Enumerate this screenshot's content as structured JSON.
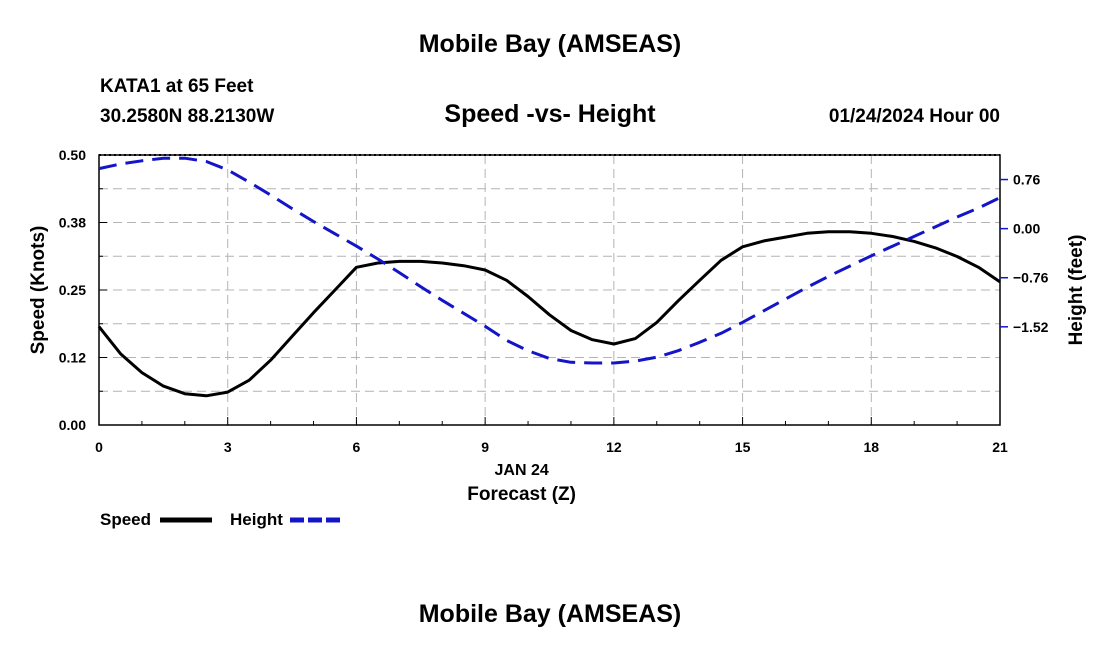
{
  "header": {
    "title": "Mobile Bay (AMSEAS)",
    "station": "KATA1 at 65 Feet",
    "coords": "30.2580N  88.2130W",
    "subtitle": "Speed -vs- Height",
    "datetime": "01/24/2024 Hour 00"
  },
  "footer": {
    "title": "Mobile Bay (AMSEAS)"
  },
  "colors": {
    "speed": "#000000",
    "height": "#1414c8",
    "grid": "#b4b4b4"
  },
  "chart_data": {
    "type": "line",
    "xlabel": "Forecast (Z)",
    "xdate_label": "JAN 24",
    "ylabel": "Speed (Knots)",
    "y2label": "Height (feet)",
    "xlim": [
      0,
      21
    ],
    "ylim": [
      0,
      0.5
    ],
    "y2lim": [
      -3.04,
      1.14
    ],
    "xticks": [
      0,
      3,
      6,
      9,
      12,
      15,
      18,
      21
    ],
    "xtick_labels": [
      "0",
      "3",
      "6",
      "9",
      "12",
      "15",
      "18",
      "21"
    ],
    "yticks": [
      0,
      0.125,
      0.25,
      0.375,
      0.5
    ],
    "ytick_labels": [
      "0.00",
      "0.12",
      "0.25",
      "0.38",
      "0.50"
    ],
    "y2ticks": [
      -1.52,
      -0.76,
      0,
      0.76
    ],
    "y2tick_labels": [
      "-1.52",
      "-0.76",
      "0.00",
      "0.76"
    ],
    "grid": true,
    "legend": {
      "placement": "bottom-left",
      "entries": [
        "Speed",
        "Height"
      ]
    },
    "series": [
      {
        "name": "Speed",
        "axis": "left",
        "style": "solid",
        "x": [
          0,
          0.5,
          1,
          1.5,
          2,
          2.5,
          3,
          3.5,
          4,
          4.5,
          5,
          5.5,
          6,
          6.5,
          7,
          7.5,
          8,
          8.5,
          9,
          9.5,
          10,
          10.5,
          11,
          11.5,
          12,
          12.5,
          13,
          13.5,
          14,
          14.5,
          15,
          15.5,
          16,
          16.5,
          17,
          17.5,
          18,
          18.5,
          19,
          19.5,
          20,
          20.5,
          21
        ],
        "values": [
          0.182,
          0.132,
          0.097,
          0.072,
          0.058,
          0.054,
          0.061,
          0.083,
          0.12,
          0.164,
          0.208,
          0.25,
          0.292,
          0.3,
          0.303,
          0.303,
          0.3,
          0.295,
          0.287,
          0.268,
          0.238,
          0.204,
          0.175,
          0.158,
          0.15,
          0.16,
          0.19,
          0.23,
          0.268,
          0.305,
          0.33,
          0.341,
          0.348,
          0.355,
          0.358,
          0.358,
          0.355,
          0.349,
          0.34,
          0.328,
          0.312,
          0.292,
          0.265
        ]
      },
      {
        "name": "Height",
        "axis": "right",
        "style": "dashed",
        "x": [
          0,
          0.5,
          1,
          1.5,
          2,
          2.5,
          3,
          3.5,
          4,
          4.5,
          5,
          5.5,
          6,
          6.5,
          7,
          7.5,
          8,
          8.5,
          9,
          9.5,
          10,
          10.5,
          11,
          11.5,
          12,
          12.5,
          13,
          13.5,
          14,
          14.5,
          15,
          15.5,
          16,
          16.5,
          17,
          17.5,
          18,
          18.5,
          19,
          19.5,
          20,
          20.5,
          21
        ],
        "values": [
          0.93,
          1.0,
          1.05,
          1.09,
          1.09,
          1.04,
          0.91,
          0.72,
          0.52,
          0.31,
          0.11,
          -0.08,
          -0.27,
          -0.47,
          -0.68,
          -0.9,
          -1.11,
          -1.31,
          -1.51,
          -1.73,
          -1.89,
          -2.01,
          -2.07,
          -2.08,
          -2.08,
          -2.05,
          -1.99,
          -1.89,
          -1.76,
          -1.62,
          -1.45,
          -1.27,
          -1.09,
          -0.91,
          -0.74,
          -0.58,
          -0.42,
          -0.27,
          -0.12,
          0.03,
          0.18,
          0.32,
          0.48
        ]
      }
    ]
  }
}
